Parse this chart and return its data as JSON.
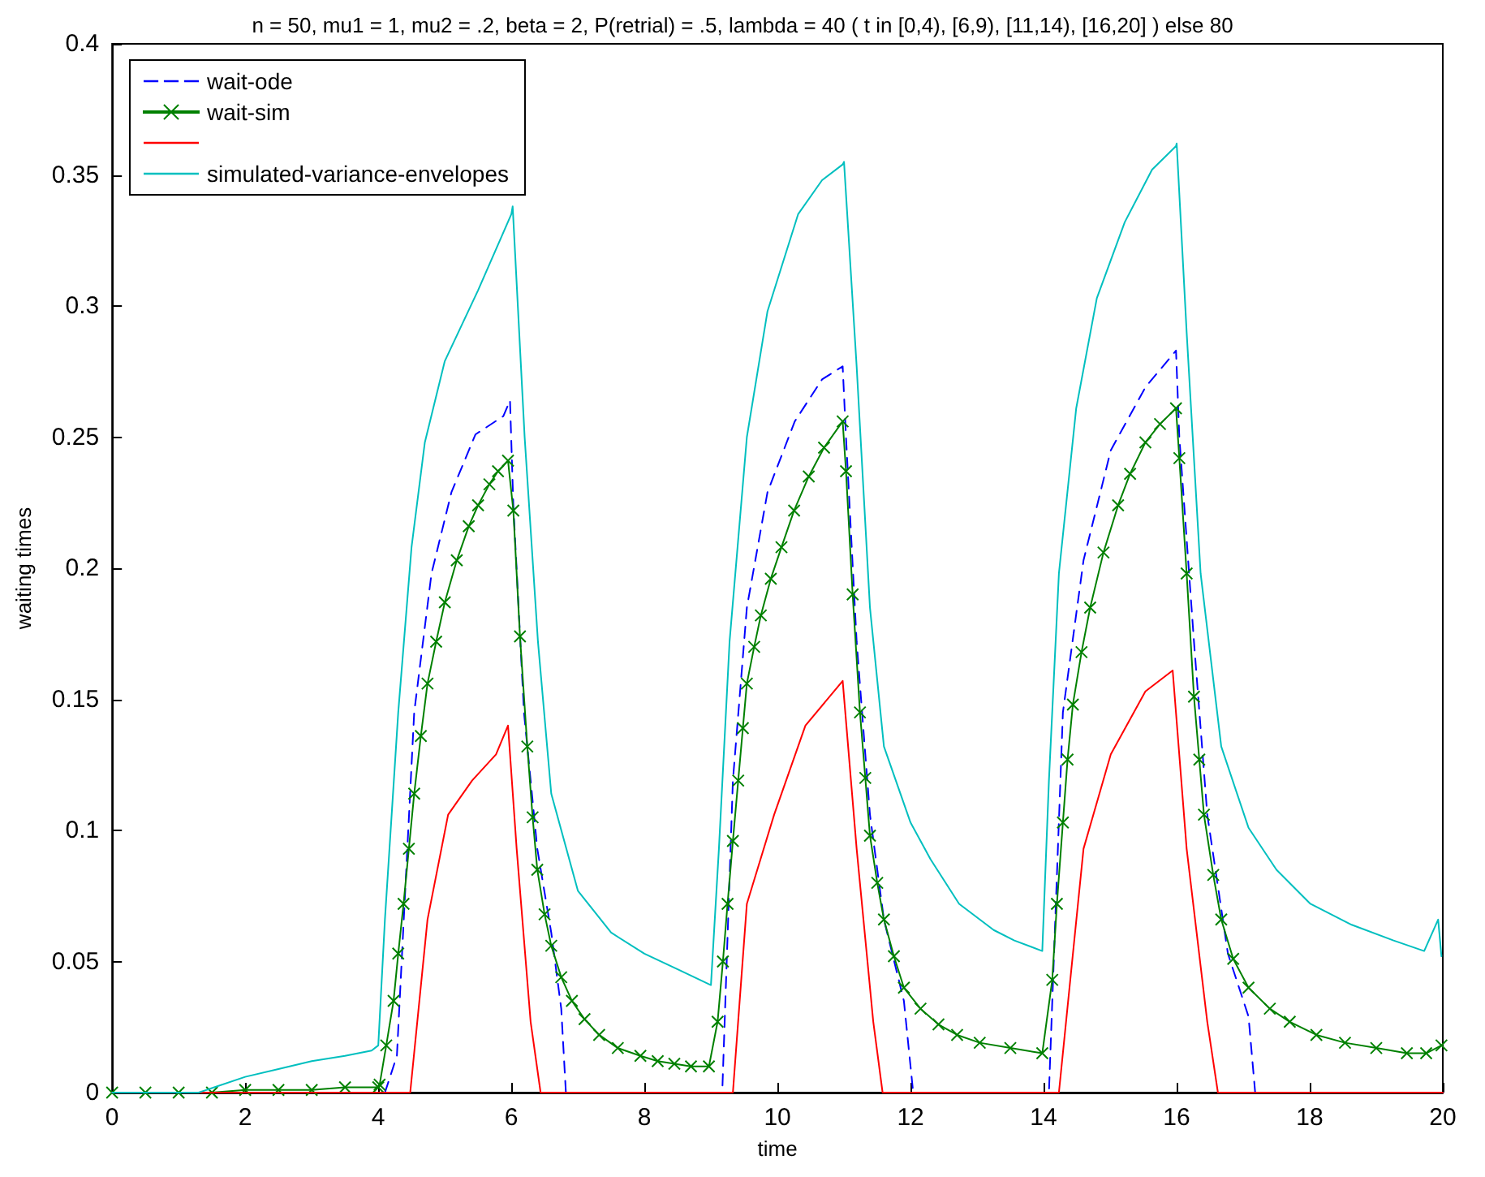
{
  "chart_data": {
    "type": "line",
    "title": "n = 50, mu1 = 1, mu2 = .2, beta = 2, P(retrial) = .5, lambda = 40 ( t in [0,4), [6,9), [11,14), [16,20] ) else 80",
    "xlabel": "time",
    "ylabel": "waiting times",
    "xlim": [
      0,
      20
    ],
    "xticks": [
      0,
      2,
      4,
      6,
      8,
      10,
      12,
      14,
      16,
      18,
      20
    ],
    "ylim": [
      0,
      0.4
    ],
    "yticks": [
      0,
      0.05,
      0.1,
      0.15,
      0.2,
      0.25,
      0.3,
      0.35,
      0.4
    ],
    "grid": false,
    "legend": "top left",
    "series": [
      {
        "name": "wait-ode",
        "color": "#0000ff",
        "line_style": "dashed",
        "marker": "none",
        "x": [
          0,
          4.1,
          4.28,
          4.54,
          4.8,
          5.1,
          5.46,
          5.88,
          5.98,
          6.03,
          6.19,
          6.39,
          6.6,
          6.75,
          6.82,
          9.17,
          9.33,
          9.54,
          9.85,
          10.26,
          10.67,
          10.98,
          11.03,
          11.19,
          11.39,
          11.6,
          11.9,
          12.04,
          14.08,
          14.29,
          14.6,
          15.01,
          15.53,
          15.99,
          16.04,
          16.26,
          16.46,
          16.77,
          17.08,
          17.18,
          20
        ],
        "values": [
          0,
          0,
          0.014,
          0.145,
          0.198,
          0.229,
          0.251,
          0.258,
          0.264,
          0.224,
          0.145,
          0.093,
          0.061,
          0.032,
          0,
          0,
          0.119,
          0.185,
          0.229,
          0.256,
          0.272,
          0.277,
          0.25,
          0.172,
          0.106,
          0.066,
          0.035,
          0,
          0,
          0.145,
          0.203,
          0.245,
          0.269,
          0.283,
          0.25,
          0.172,
          0.106,
          0.053,
          0.029,
          0,
          0
        ]
      },
      {
        "name": "wait-sim",
        "color": "#008000",
        "line_style": "solid",
        "marker": "cross",
        "x": [
          0,
          0.5,
          1,
          1.5,
          2,
          2.5,
          3,
          3.5,
          4,
          4.02,
          4.12,
          4.23,
          4.3,
          4.38,
          4.46,
          4.54,
          4.64,
          4.74,
          4.87,
          5,
          5.18,
          5.36,
          5.5,
          5.67,
          5.8,
          5.95,
          6.03,
          6.13,
          6.24,
          6.32,
          6.39,
          6.5,
          6.6,
          6.75,
          6.91,
          7.1,
          7.32,
          7.6,
          7.94,
          8.2,
          8.45,
          8.7,
          8.97,
          9.1,
          9.18,
          9.25,
          9.33,
          9.41,
          9.48,
          9.54,
          9.65,
          9.75,
          9.9,
          10.06,
          10.25,
          10.47,
          10.7,
          10.98,
          11.03,
          11.13,
          11.24,
          11.32,
          11.39,
          11.5,
          11.6,
          11.75,
          11.9,
          12.15,
          12.42,
          12.7,
          13.04,
          13.5,
          13.98,
          14.13,
          14.2,
          14.29,
          14.36,
          14.44,
          14.57,
          14.7,
          14.9,
          15.12,
          15.3,
          15.53,
          15.75,
          15.99,
          16.04,
          16.15,
          16.26,
          16.34,
          16.41,
          16.55,
          16.67,
          16.85,
          17.08,
          17.4,
          17.7,
          18.1,
          18.53,
          19,
          19.46,
          19.75,
          19.98
        ],
        "values": [
          0,
          0,
          0,
          0,
          0.001,
          0.001,
          0.001,
          0.002,
          0.002,
          0.003,
          0.018,
          0.035,
          0.053,
          0.072,
          0.093,
          0.114,
          0.136,
          0.156,
          0.172,
          0.187,
          0.203,
          0.216,
          0.224,
          0.232,
          0.237,
          0.241,
          0.222,
          0.174,
          0.132,
          0.105,
          0.085,
          0.068,
          0.056,
          0.044,
          0.035,
          0.028,
          0.022,
          0.017,
          0.014,
          0.012,
          0.011,
          0.01,
          0.01,
          0.027,
          0.05,
          0.072,
          0.096,
          0.119,
          0.139,
          0.156,
          0.17,
          0.182,
          0.196,
          0.208,
          0.222,
          0.235,
          0.246,
          0.256,
          0.237,
          0.19,
          0.145,
          0.12,
          0.098,
          0.08,
          0.066,
          0.052,
          0.04,
          0.032,
          0.026,
          0.022,
          0.019,
          0.017,
          0.015,
          0.043,
          0.072,
          0.103,
          0.127,
          0.148,
          0.168,
          0.185,
          0.206,
          0.224,
          0.236,
          0.248,
          0.255,
          0.261,
          0.242,
          0.198,
          0.151,
          0.127,
          0.106,
          0.083,
          0.066,
          0.051,
          0.04,
          0.032,
          0.027,
          0.022,
          0.019,
          0.017,
          0.015,
          0.015,
          0.018
        ]
      },
      {
        "color": "#ff0000",
        "line_style": "solid",
        "marker": "none",
        "x": [
          0,
          4.48,
          4.74,
          5.05,
          5.41,
          5.77,
          5.95,
          6.08,
          6.29,
          6.44,
          9.33,
          9.54,
          9.95,
          10.42,
          10.98,
          11.19,
          11.44,
          11.58,
          14.23,
          14.6,
          15.01,
          15.53,
          15.94,
          16.15,
          16.46,
          16.62,
          20
        ],
        "values": [
          0,
          0,
          0.066,
          0.106,
          0.119,
          0.129,
          0.14,
          0.093,
          0.027,
          0,
          0,
          0.072,
          0.106,
          0.14,
          0.157,
          0.093,
          0.027,
          0,
          0,
          0.093,
          0.129,
          0.153,
          0.161,
          0.093,
          0.027,
          0,
          0
        ]
      },
      {
        "name": "simulated-variance-envelopes",
        "color": "#00bfbf",
        "line_style": "solid",
        "marker": "none",
        "x": [
          0,
          1.3,
          2,
          2.5,
          3,
          3.5,
          3.9,
          4,
          4.1,
          4.3,
          4.5,
          4.7,
          5,
          5.5,
          6,
          6.02,
          6.2,
          6.4,
          6.6,
          7,
          7.5,
          8,
          8.5,
          9,
          9.12,
          9.28,
          9.54,
          9.85,
          10.31,
          10.67,
          10.98,
          11.0,
          11.19,
          11.39,
          11.6,
          12.0,
          12.3,
          12.73,
          13.25,
          13.56,
          13.98,
          14.08,
          14.23,
          14.49,
          14.8,
          15.22,
          15.63,
          15.99,
          16.0,
          16.15,
          16.36,
          16.67,
          17.08,
          17.5,
          18.01,
          18.63,
          19.26,
          19.72,
          19.93,
          19.98
        ],
        "values": [
          0,
          0,
          0.006,
          0.009,
          0.012,
          0.014,
          0.016,
          0.018,
          0.066,
          0.145,
          0.208,
          0.248,
          0.279,
          0.306,
          0.335,
          0.338,
          0.25,
          0.172,
          0.114,
          0.077,
          0.061,
          0.053,
          0.047,
          0.041,
          0.093,
          0.172,
          0.25,
          0.298,
          0.335,
          0.348,
          0.354,
          0.355,
          0.277,
          0.185,
          0.132,
          0.103,
          0.089,
          0.072,
          0.062,
          0.058,
          0.054,
          0.119,
          0.198,
          0.261,
          0.303,
          0.332,
          0.352,
          0.361,
          0.362,
          0.29,
          0.198,
          0.132,
          0.101,
          0.085,
          0.072,
          0.064,
          0.058,
          0.054,
          0.066,
          0.052
        ]
      }
    ]
  }
}
